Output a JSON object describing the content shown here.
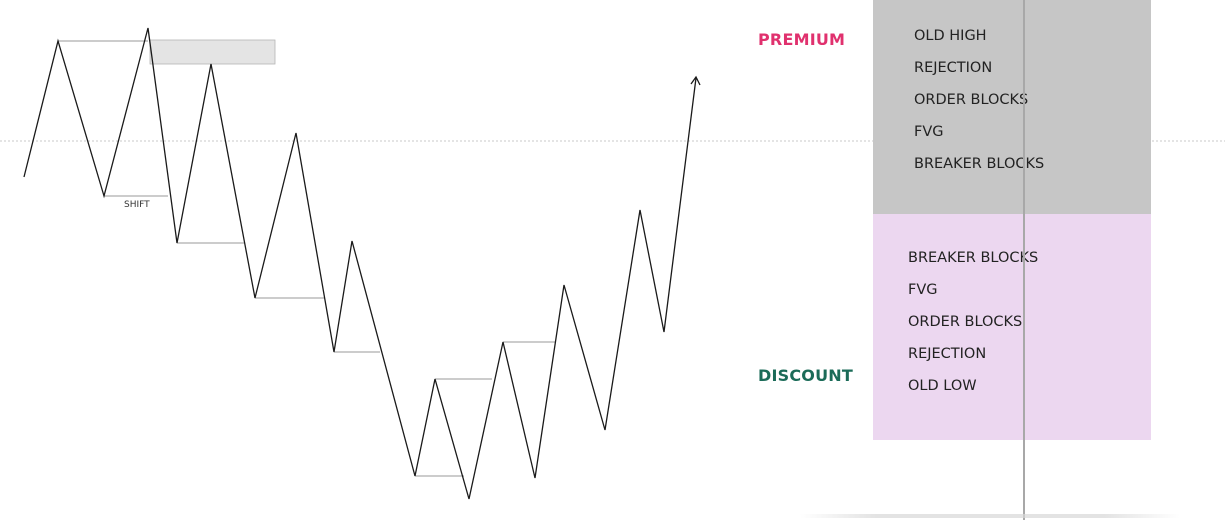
{
  "diagram": {
    "shift_label": "SHIFT",
    "colors": {
      "price_line": "#1a1a1a",
      "level_line": "#9a9a9a",
      "equilibrium_line": "#c8c8c8",
      "highlight_fill": "#e4e4e4"
    }
  },
  "premium": {
    "label": "PREMIUM",
    "color": "#e0316e",
    "items": [
      "OLD HIGH",
      "REJECTION",
      "ORDER BLOCKS",
      "FVG",
      "BREAKER BLOCKS"
    ],
    "box_color": "#c6c6c6"
  },
  "discount": {
    "label": "DISCOUNT",
    "color": "#1b6b58",
    "items": [
      "BREAKER BLOCKS",
      "FVG",
      "ORDER BLOCKS",
      "REJECTION",
      "OLD LOW"
    ],
    "box_color": "#ecd7f0"
  }
}
